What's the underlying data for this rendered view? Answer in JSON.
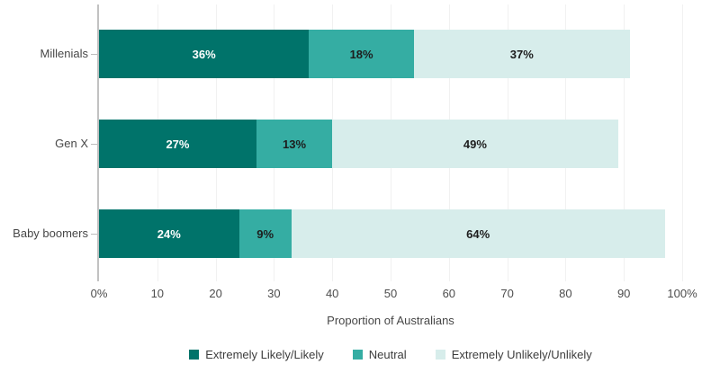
{
  "chart_data": {
    "type": "bar",
    "orientation": "horizontal",
    "stacked": true,
    "title": "",
    "xlabel": "Proportion of Australians",
    "ylabel": "",
    "categories": [
      "Millenials",
      "Gen X",
      "Baby boomers"
    ],
    "series": [
      {
        "name": "Extremely Likely/Likely",
        "color": "#00736a",
        "label_color": "#ffffff",
        "values": [
          36,
          27,
          24
        ]
      },
      {
        "name": "Neutral",
        "color": "#35ada3",
        "label_color": "#1d1d1d",
        "values": [
          18,
          13,
          9
        ]
      },
      {
        "name": "Extremely Unlikely/Unlikely",
        "color": "#d7edeb",
        "label_color": "#1d1d1d",
        "values": [
          37,
          49,
          64
        ]
      }
    ],
    "value_suffix": "%",
    "xlim": [
      0,
      100
    ],
    "x_ticks": [
      "0%",
      "10",
      "20",
      "30",
      "40",
      "50",
      "60",
      "70",
      "80",
      "90",
      "100%"
    ],
    "grid": true,
    "legend_position": "bottom"
  },
  "colors": {
    "axis_line": "#c2c2c2",
    "gridline": "#f1f1f1",
    "tick_text": "#4d4d4d",
    "category_text": "#474747"
  }
}
